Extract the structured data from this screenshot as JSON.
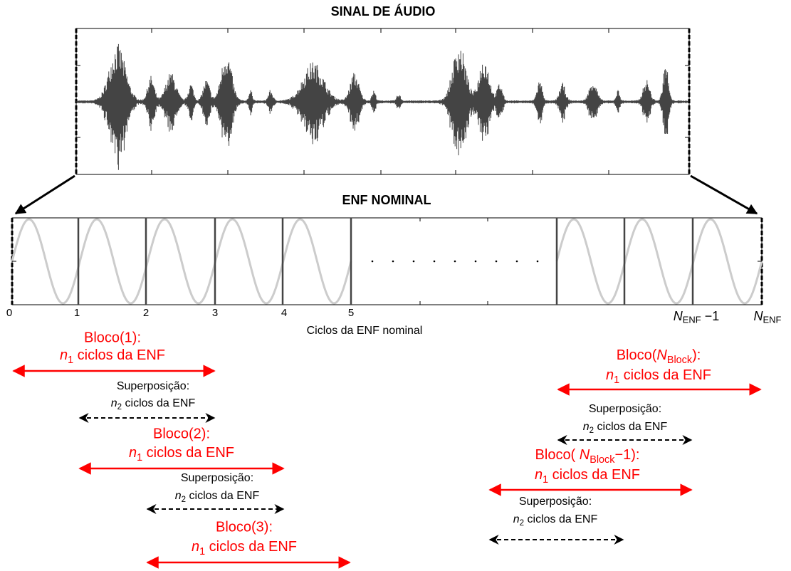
{
  "audio_title": "SINAL DE ÁUDIO",
  "enf_title": "ENF NOMINAL",
  "x_ticks": [
    "0",
    "1",
    "2",
    "3",
    "4",
    "5"
  ],
  "x_tick_n_minus_1": {
    "var": "N",
    "sub": "ENF",
    "post": " −1"
  },
  "x_tick_n": {
    "var": "N",
    "sub": "ENF"
  },
  "x_label": "Ciclos da ENF nominal",
  "left": [
    {
      "title": "Bloco(1):",
      "cycles": {
        "var": "n",
        "sub": "1",
        "post": " ciclos da ENF"
      }
    },
    {
      "title": "Superposição:",
      "cycles": {
        "var": "n",
        "sub": "2",
        "post": " ciclos da ENF"
      }
    },
    {
      "title": "Bloco(2):",
      "cycles": {
        "var": "n",
        "sub": "1",
        "post": " ciclos da ENF"
      }
    },
    {
      "title": "Superposição:",
      "cycles": {
        "var": "n",
        "sub": "2",
        "post": " ciclos da ENF"
      }
    },
    {
      "title": "Bloco(3):",
      "cycles": {
        "var": "n",
        "sub": "1",
        "post": "   ciclos da ENF"
      }
    }
  ],
  "right": [
    {
      "title": {
        "pre": "Bloco(",
        "var": "N",
        "sub": "Block",
        "post": "):"
      },
      "cycles": {
        "var": "n",
        "sub": "1",
        "post": " ciclos da ENF"
      }
    },
    {
      "title": "Superposição:",
      "cycles": {
        "var": "n",
        "sub": "2",
        "post": " ciclos da ENF"
      }
    },
    {
      "title": {
        "pre": "Bloco( ",
        "var": "N",
        "sub": "Block",
        "post": "−1):"
      },
      "cycles": {
        "var": "n",
        "sub": "1",
        "post": "   ciclos da ENF"
      }
    },
    {
      "title": "Superposição:",
      "cycles": {
        "var": "n",
        "sub": "2",
        "post": " ciclos da ENF"
      }
    }
  ]
}
